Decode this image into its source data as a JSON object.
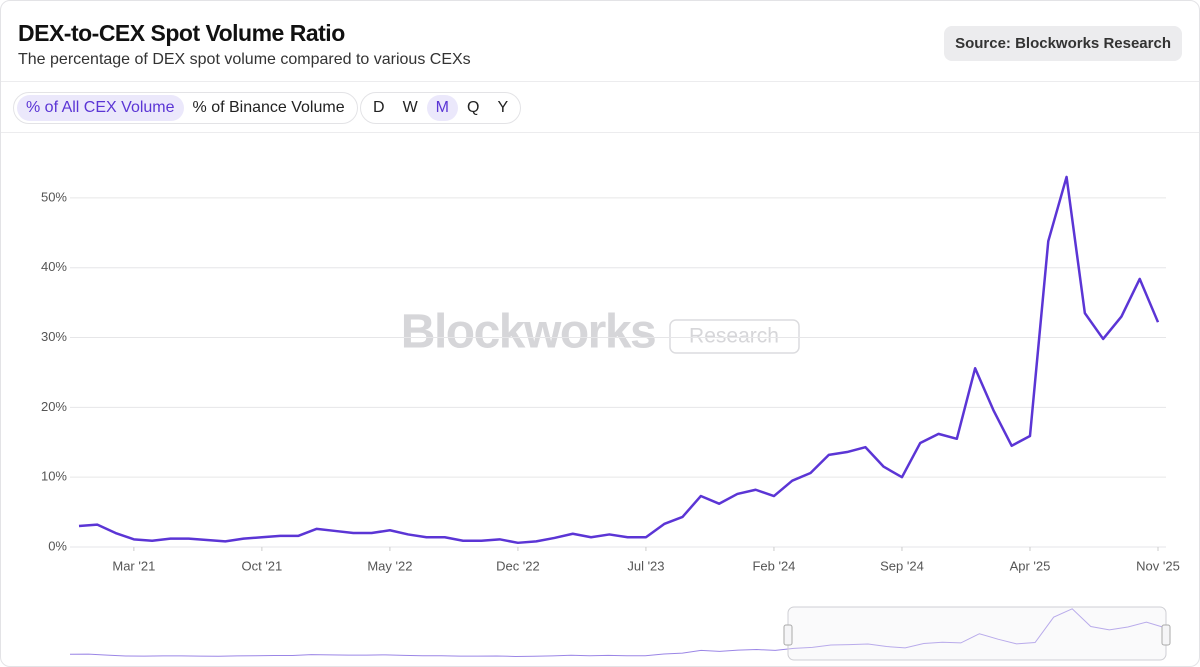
{
  "header": {
    "title": "DEX-to-CEX Spot Volume Ratio",
    "subtitle": "The percentage of DEX spot volume compared to various CEXs",
    "source": "Source: Blockworks Research"
  },
  "controls": {
    "metric": [
      "% of All CEX Volume",
      "% of Binance Volume"
    ],
    "metric_selected": 0,
    "interval": [
      "D",
      "W",
      "M",
      "Q",
      "Y"
    ],
    "interval_selected": 2
  },
  "watermark": {
    "brand": "Blockworks",
    "tag": "Research"
  },
  "chart_data": {
    "type": "line",
    "color": "#5b35d5",
    "grid": true,
    "x": [
      "2020-12",
      "2021-01",
      "2021-02",
      "2021-03",
      "2021-04",
      "2021-05",
      "2021-06",
      "2021-07",
      "2021-08",
      "2021-09",
      "2021-10",
      "2021-11",
      "2021-12",
      "2022-01",
      "2022-02",
      "2022-03",
      "2022-04",
      "2022-05",
      "2022-06",
      "2022-07",
      "2022-08",
      "2022-09",
      "2022-10",
      "2022-11",
      "2022-12",
      "2023-01",
      "2023-02",
      "2023-03",
      "2023-04",
      "2023-05",
      "2023-06",
      "2023-07",
      "2023-08",
      "2023-09",
      "2023-10",
      "2023-11",
      "2023-12",
      "2024-01",
      "2024-02",
      "2024-03",
      "2024-04",
      "2024-05",
      "2024-06",
      "2024-07",
      "2024-08",
      "2024-09",
      "2024-10",
      "2024-11",
      "2024-12",
      "2025-01",
      "2025-02",
      "2025-03",
      "2025-04",
      "2025-05",
      "2025-06",
      "2025-07",
      "2025-08",
      "2025-09",
      "2025-10",
      "2025-11"
    ],
    "values": [
      3.0,
      3.2,
      2.0,
      1.1,
      0.9,
      1.2,
      1.2,
      1.0,
      0.8,
      1.2,
      1.4,
      1.6,
      1.6,
      2.6,
      2.3,
      2.0,
      2.0,
      2.4,
      1.8,
      1.4,
      1.4,
      0.9,
      0.9,
      1.1,
      0.6,
      0.8,
      1.3,
      1.9,
      1.4,
      1.8,
      1.4,
      1.4,
      3.3,
      4.3,
      7.3,
      6.2,
      7.6,
      8.2,
      7.3,
      9.5,
      10.6,
      13.2,
      13.6,
      14.3,
      11.5,
      10.0,
      14.9,
      16.2,
      15.5,
      25.6,
      19.6,
      14.5,
      15.9,
      43.8,
      53.0,
      33.5,
      29.8,
      33.0,
      38.4,
      32.2
    ],
    "ylim": [
      0,
      55
    ],
    "yticks": [
      {
        "value": 0,
        "label": "0%"
      },
      {
        "value": 10,
        "label": "10%"
      },
      {
        "value": 20,
        "label": "20%"
      },
      {
        "value": 30,
        "label": "30%"
      },
      {
        "value": 40,
        "label": "40%"
      },
      {
        "value": 50,
        "label": "50%"
      }
    ],
    "xticks": [
      {
        "value": "2021-03",
        "label": "Mar '21"
      },
      {
        "value": "2021-10",
        "label": "Oct '21"
      },
      {
        "value": "2022-05",
        "label": "May '22"
      },
      {
        "value": "2022-12",
        "label": "Dec '22"
      },
      {
        "value": "2023-07",
        "label": "Jul '23"
      },
      {
        "value": "2024-02",
        "label": "Feb '24"
      },
      {
        "value": "2024-09",
        "label": "Sep '24"
      },
      {
        "value": "2025-04",
        "label": "Apr '25"
      },
      {
        "value": "2025-11",
        "label": "Nov '25"
      }
    ]
  }
}
